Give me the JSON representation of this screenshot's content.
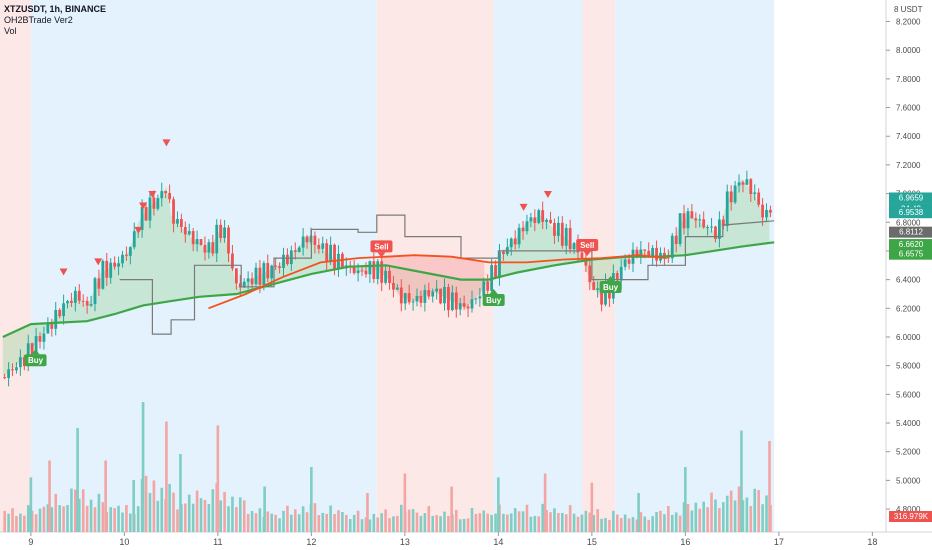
{
  "header": {
    "symbol_line": "XTZUSDT, 1h, BINANCE",
    "indicator_line": "OH2BTrade Ver2",
    "volume_line": "Vol"
  },
  "chart_data": {
    "type": "candlestick",
    "currency": "USDT",
    "x_tick_labels": [
      "9",
      "10",
      "11",
      "12",
      "13",
      "14",
      "15",
      "16",
      "17",
      "18"
    ],
    "y_ticks": [
      4.8,
      5.0,
      5.2,
      5.4,
      5.6,
      5.8,
      6.0,
      6.2,
      6.4,
      6.6,
      6.8,
      7.0,
      7.2,
      7.4,
      7.6,
      7.8,
      8.0,
      8.2
    ],
    "ylim": [
      4.64,
      8.35
    ],
    "price_badges": [
      {
        "text": "6.9659",
        "color": "#26a69a"
      },
      {
        "text": "24:43",
        "color": "#26a69a"
      },
      {
        "text": "6.9538",
        "color": "#26a69a"
      },
      {
        "text": "6.8112",
        "color": "#6b6b6b"
      },
      {
        "text": "6.6620",
        "color": "#3fa648"
      },
      {
        "text": "6.6575",
        "color": "#3fa648"
      },
      {
        "text": "316.979K",
        "color": "#ef5350"
      }
    ],
    "signals": [
      {
        "type": "Buy",
        "day": 9.05,
        "price": 5.88
      },
      {
        "type": "Sell",
        "day": 12.75,
        "price": 6.59
      },
      {
        "type": "Buy",
        "day": 13.95,
        "price": 6.3
      },
      {
        "type": "Sell",
        "day": 14.95,
        "price": 6.6
      },
      {
        "type": "Buy",
        "day": 15.2,
        "price": 6.39
      }
    ],
    "sell_markers": [
      {
        "day": 9.35,
        "price": 6.45
      },
      {
        "day": 9.72,
        "price": 6.52
      },
      {
        "day": 10.15,
        "price": 6.74
      },
      {
        "day": 10.2,
        "price": 6.91
      },
      {
        "day": 10.3,
        "price": 6.99
      },
      {
        "day": 10.45,
        "price": 7.35
      },
      {
        "day": 14.27,
        "price": 6.9
      },
      {
        "day": 14.53,
        "price": 6.99
      }
    ],
    "background_bands": [
      {
        "start": 8.67,
        "end": 9.0,
        "color": "#fde8e8"
      },
      {
        "start": 9.0,
        "end": 12.7,
        "color": "#e3f2fd"
      },
      {
        "start": 12.7,
        "end": 13.95,
        "color": "#fde8e8"
      },
      {
        "start": 13.95,
        "end": 14.9,
        "color": "#e3f2fd"
      },
      {
        "start": 14.9,
        "end": 15.25,
        "color": "#fde8e8"
      },
      {
        "start": 15.25,
        "end": 16.95,
        "color": "#e3f2fd"
      }
    ],
    "lines": {
      "green_ma": [
        [
          8.7,
          6.0
        ],
        [
          9.0,
          6.09
        ],
        [
          9.3,
          6.1
        ],
        [
          9.6,
          6.11
        ],
        [
          9.9,
          6.16
        ],
        [
          10.2,
          6.22
        ],
        [
          10.5,
          6.25
        ],
        [
          10.8,
          6.28
        ],
        [
          11.2,
          6.3
        ],
        [
          11.6,
          6.37
        ],
        [
          12.0,
          6.44
        ],
        [
          12.4,
          6.49
        ],
        [
          12.8,
          6.5
        ],
        [
          13.2,
          6.45
        ],
        [
          13.6,
          6.4
        ],
        [
          13.9,
          6.4
        ],
        [
          14.2,
          6.45
        ],
        [
          14.6,
          6.5
        ],
        [
          15.0,
          6.54
        ],
        [
          15.4,
          6.56
        ],
        [
          15.7,
          6.56
        ],
        [
          16.0,
          6.57
        ],
        [
          16.3,
          6.6
        ],
        [
          16.6,
          6.63
        ],
        [
          16.95,
          6.66
        ]
      ],
      "orange_ma": [
        [
          10.9,
          6.2
        ],
        [
          11.3,
          6.3
        ],
        [
          11.7,
          6.42
        ],
        [
          12.1,
          6.52
        ],
        [
          12.5,
          6.55
        ],
        [
          12.8,
          6.56
        ],
        [
          13.1,
          6.57
        ],
        [
          13.5,
          6.56
        ],
        [
          13.9,
          6.52
        ],
        [
          14.3,
          6.52
        ],
        [
          14.7,
          6.54
        ],
        [
          15.1,
          6.55
        ],
        [
          15.5,
          6.57
        ],
        [
          15.8,
          6.55
        ]
      ],
      "gray_step": [
        [
          9.95,
          6.4
        ],
        [
          10.3,
          6.4
        ],
        [
          10.3,
          6.02
        ],
        [
          10.5,
          6.02
        ],
        [
          10.5,
          6.12
        ],
        [
          10.75,
          6.12
        ],
        [
          10.75,
          6.5
        ],
        [
          11.25,
          6.5
        ],
        [
          11.25,
          6.35
        ],
        [
          11.6,
          6.35
        ],
        [
          11.6,
          6.55
        ],
        [
          12.0,
          6.55
        ],
        [
          12.0,
          6.75
        ],
        [
          12.5,
          6.75
        ],
        [
          12.5,
          6.73
        ],
        [
          12.7,
          6.73
        ],
        [
          12.7,
          6.85
        ],
        [
          13.0,
          6.85
        ],
        [
          13.0,
          6.7
        ],
        [
          13.6,
          6.7
        ],
        [
          13.6,
          6.55
        ],
        [
          14.0,
          6.55
        ],
        [
          14.0,
          6.6
        ],
        [
          15.0,
          6.6
        ],
        [
          15.0,
          6.4
        ],
        [
          15.6,
          6.4
        ],
        [
          15.6,
          6.5
        ],
        [
          16.0,
          6.5
        ],
        [
          16.0,
          6.7
        ],
        [
          16.4,
          6.7
        ],
        [
          16.4,
          6.78
        ],
        [
          16.95,
          6.81
        ]
      ],
      "price_path": [
        [
          8.7,
          5.72
        ],
        [
          8.9,
          5.83
        ],
        [
          9.05,
          5.95
        ],
        [
          9.2,
          6.08
        ],
        [
          9.35,
          6.22
        ],
        [
          9.5,
          6.3
        ],
        [
          9.6,
          6.2
        ],
        [
          9.75,
          6.45
        ],
        [
          9.9,
          6.5
        ],
        [
          10.05,
          6.6
        ],
        [
          10.15,
          6.8
        ],
        [
          10.25,
          6.9
        ],
        [
          10.35,
          6.95
        ],
        [
          10.45,
          7.05
        ],
        [
          10.5,
          6.85
        ],
        [
          10.7,
          6.7
        ],
        [
          10.9,
          6.6
        ],
        [
          11.05,
          6.78
        ],
        [
          11.15,
          6.5
        ],
        [
          11.2,
          6.35
        ],
        [
          11.4,
          6.42
        ],
        [
          11.6,
          6.48
        ],
        [
          11.8,
          6.58
        ],
        [
          11.95,
          6.7
        ],
        [
          12.1,
          6.62
        ],
        [
          12.3,
          6.52
        ],
        [
          12.5,
          6.45
        ],
        [
          12.65,
          6.48
        ],
        [
          12.8,
          6.42
        ],
        [
          12.95,
          6.28
        ],
        [
          13.1,
          6.25
        ],
        [
          13.3,
          6.32
        ],
        [
          13.5,
          6.25
        ],
        [
          13.65,
          6.2
        ],
        [
          13.8,
          6.3
        ],
        [
          13.95,
          6.45
        ],
        [
          14.05,
          6.6
        ],
        [
          14.2,
          6.7
        ],
        [
          14.3,
          6.8
        ],
        [
          14.45,
          6.85
        ],
        [
          14.6,
          6.75
        ],
        [
          14.75,
          6.68
        ],
        [
          14.9,
          6.55
        ],
        [
          15.0,
          6.35
        ],
        [
          15.1,
          6.28
        ],
        [
          15.2,
          6.35
        ],
        [
          15.35,
          6.52
        ],
        [
          15.5,
          6.6
        ],
        [
          15.65,
          6.58
        ],
        [
          15.8,
          6.55
        ],
        [
          15.95,
          6.8
        ],
        [
          16.05,
          6.85
        ],
        [
          16.2,
          6.78
        ],
        [
          16.35,
          6.72
        ],
        [
          16.45,
          6.95
        ],
        [
          16.6,
          7.1
        ],
        [
          16.72,
          7.02
        ],
        [
          16.85,
          6.82
        ],
        [
          16.95,
          6.97
        ]
      ]
    },
    "volume_bars": [
      {
        "day": 9.0,
        "v": 0.42,
        "up": true
      },
      {
        "day": 9.2,
        "v": 0.55,
        "up": false
      },
      {
        "day": 9.5,
        "v": 0.8,
        "up": true
      },
      {
        "day": 9.8,
        "v": 0.55,
        "up": false
      },
      {
        "day": 10.1,
        "v": 0.4,
        "up": true
      },
      {
        "day": 10.2,
        "v": 1.0,
        "up": true
      },
      {
        "day": 10.45,
        "v": 0.85,
        "up": false
      },
      {
        "day": 10.6,
        "v": 0.6,
        "up": true
      },
      {
        "day": 11.0,
        "v": 0.82,
        "up": false
      },
      {
        "day": 11.5,
        "v": 0.35,
        "up": true
      },
      {
        "day": 12.0,
        "v": 0.5,
        "up": true
      },
      {
        "day": 12.6,
        "v": 0.3,
        "up": false
      },
      {
        "day": 13.0,
        "v": 0.45,
        "up": false
      },
      {
        "day": 13.5,
        "v": 0.35,
        "up": false
      },
      {
        "day": 14.0,
        "v": 0.42,
        "up": true
      },
      {
        "day": 14.5,
        "v": 0.45,
        "up": false
      },
      {
        "day": 15.0,
        "v": 0.38,
        "up": false
      },
      {
        "day": 15.5,
        "v": 0.3,
        "up": true
      },
      {
        "day": 16.0,
        "v": 0.5,
        "up": true
      },
      {
        "day": 16.6,
        "v": 0.78,
        "up": true
      },
      {
        "day": 16.9,
        "v": 0.7,
        "up": false
      }
    ]
  }
}
